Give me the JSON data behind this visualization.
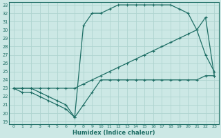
{
  "xlabel": "Humidex (Indice chaleur)",
  "bg_color": "#cce8e5",
  "line_color": "#1e6e65",
  "grid_color": "#afd4d0",
  "ylim": [
    19,
    33
  ],
  "xlim": [
    0,
    23
  ],
  "yticks": [
    19,
    20,
    21,
    22,
    23,
    24,
    25,
    26,
    27,
    28,
    29,
    30,
    31,
    32,
    33
  ],
  "xticks": [
    0,
    1,
    2,
    3,
    4,
    5,
    6,
    7,
    8,
    9,
    10,
    11,
    12,
    13,
    14,
    15,
    16,
    17,
    18,
    19,
    20,
    21,
    22,
    23
  ],
  "line1_x": [
    0,
    1,
    2,
    3,
    4,
    5,
    6,
    7,
    8,
    9,
    10,
    11,
    12,
    13,
    14,
    15,
    16,
    17,
    18,
    19,
    20,
    21,
    22,
    23
  ],
  "line1_y": [
    23.0,
    22.5,
    22.5,
    22.0,
    21.5,
    21.0,
    20.5,
    19.5,
    21.0,
    22.5,
    24.0,
    24.0,
    24.0,
    24.0,
    24.0,
    24.0,
    24.0,
    24.0,
    24.0,
    24.0,
    24.0,
    24.0,
    24.5,
    24.5
  ],
  "line2_x": [
    0,
    1,
    2,
    3,
    4,
    5,
    6,
    7,
    8,
    9,
    10,
    11,
    12,
    13,
    14,
    15,
    16,
    17,
    18,
    19,
    20,
    21,
    22,
    23
  ],
  "line2_y": [
    23.0,
    23.0,
    23.0,
    23.0,
    23.0,
    23.0,
    23.0,
    23.0,
    23.5,
    24.0,
    24.5,
    25.0,
    25.5,
    26.0,
    26.5,
    27.0,
    27.5,
    28.0,
    28.5,
    29.0,
    29.5,
    30.0,
    31.5,
    24.5
  ],
  "line3_x": [
    0,
    1,
    2,
    3,
    4,
    5,
    6,
    7,
    8,
    9,
    10,
    11,
    12,
    13,
    14,
    15,
    16,
    17,
    18,
    19,
    20,
    21,
    22,
    23
  ],
  "line3_y": [
    23.0,
    23.0,
    23.0,
    22.5,
    22.0,
    21.5,
    21.0,
    19.5,
    30.5,
    32.0,
    32.0,
    32.5,
    33.0,
    33.0,
    33.0,
    33.0,
    33.0,
    33.0,
    33.0,
    32.5,
    32.0,
    30.0,
    27.0,
    25.0
  ]
}
